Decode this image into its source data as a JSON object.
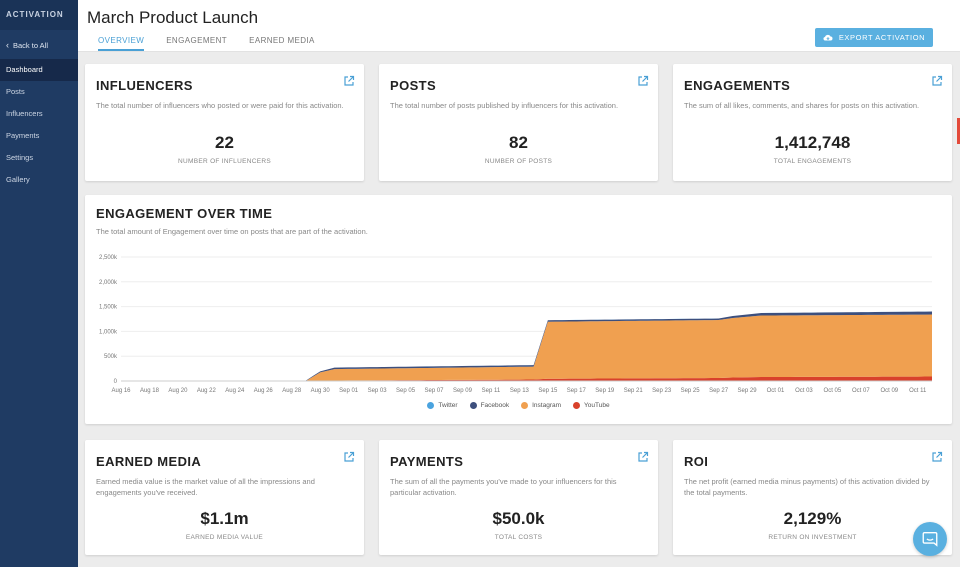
{
  "sidebar": {
    "brand": "ACTIVATION",
    "back_label": "Back to All",
    "items": [
      {
        "label": "Dashboard"
      },
      {
        "label": "Posts"
      },
      {
        "label": "Influencers"
      },
      {
        "label": "Payments"
      },
      {
        "label": "Settings"
      },
      {
        "label": "Gallery"
      }
    ]
  },
  "header": {
    "title": "March Product Launch",
    "tabs": [
      "OVERVIEW",
      "ENGAGEMENT",
      "EARNED MEDIA"
    ],
    "export_label": "EXPORT ACTIVATION"
  },
  "stats": {
    "influencers": {
      "title": "INFLUENCERS",
      "desc": "The total number of influencers who posted or were paid for this activation.",
      "value": "22",
      "sub": "NUMBER OF INFLUENCERS"
    },
    "posts": {
      "title": "POSTS",
      "desc": "The total number of posts published by influencers for this activation.",
      "value": "82",
      "sub": "NUMBER OF POSTS"
    },
    "engagements": {
      "title": "ENGAGEMENTS",
      "desc": "The sum of all likes, comments, and shares for posts on this activation.",
      "value": "1,412,748",
      "sub": "TOTAL ENGAGEMENTS"
    },
    "earned_media": {
      "title": "EARNED MEDIA",
      "desc": "Earned media value is the market value of all the impressions and engagements you've received.",
      "value": "$1.1m",
      "sub": "EARNED MEDIA VALUE"
    },
    "payments": {
      "title": "PAYMENTS",
      "desc": "The sum of all the payments you've made to your influencers for this particular activation.",
      "value": "$50.0k",
      "sub": "TOTAL COSTS"
    },
    "roi": {
      "title": "ROI",
      "desc": "The net profit (earned media minus payments) of this activation divided by the total payments.",
      "value": "2,129%",
      "sub": "RETURN ON INVESTMENT"
    }
  },
  "engagement_chart": {
    "title": "ENGAGEMENT OVER TIME",
    "desc": "The total amount of Engagement over time on posts that are part of the activation."
  },
  "colors": {
    "twitter": "#4aa3df",
    "facebook": "#3d4f7d",
    "instagram": "#f0a050",
    "youtube": "#d9412b",
    "accent": "#5ab0e0"
  },
  "chart_data": {
    "type": "area",
    "title": "ENGAGEMENT OVER TIME",
    "ylabel": "",
    "ylim": [
      0,
      2500
    ],
    "yticks": [
      0,
      500,
      1000,
      1500,
      2000,
      2500
    ],
    "ytick_labels": [
      "0",
      "500k",
      "1,000k",
      "1,500k",
      "2,000k",
      "2,500k"
    ],
    "xtick_labels": [
      "Aug 16",
      "Aug 18",
      "Aug 20",
      "Aug 22",
      "Aug 24",
      "Aug 26",
      "Aug 28",
      "Aug 30",
      "Sep 01",
      "Sep 03",
      "Sep 05",
      "Sep 07",
      "Sep 09",
      "Sep 11",
      "Sep 13",
      "Sep 15",
      "Sep 17",
      "Sep 19",
      "Sep 21",
      "Sep 23",
      "Sep 25",
      "Sep 27",
      "Sep 29",
      "Oct 01",
      "Oct 03",
      "Oct 05",
      "Oct 07",
      "Oct 09",
      "Oct 11"
    ],
    "x_start_day": 0,
    "x_end_day": 57,
    "series": [
      {
        "name": "Twitter",
        "color_key": "twitter",
        "points": [
          [
            0,
            0
          ],
          [
            13,
            0
          ],
          [
            57,
            2
          ]
        ]
      },
      {
        "name": "Facebook",
        "color_key": "facebook",
        "points": [
          [
            0,
            8
          ],
          [
            13,
            8
          ],
          [
            14,
            20
          ],
          [
            15,
            30
          ],
          [
            29,
            30
          ],
          [
            30,
            30
          ],
          [
            42,
            30
          ],
          [
            43,
            40
          ],
          [
            45,
            50
          ],
          [
            57,
            60
          ]
        ]
      },
      {
        "name": "Instagram",
        "color_key": "instagram",
        "points": [
          [
            0,
            2
          ],
          [
            13,
            2
          ],
          [
            14,
            170
          ],
          [
            15,
            230
          ],
          [
            29,
            260
          ],
          [
            30,
            1150
          ],
          [
            42,
            1170
          ],
          [
            43,
            1200
          ],
          [
            45,
            1240
          ],
          [
            57,
            1250
          ]
        ]
      },
      {
        "name": "YouTube",
        "color_key": "youtube",
        "points": [
          [
            0,
            0
          ],
          [
            13,
            0
          ],
          [
            15,
            10
          ],
          [
            29,
            30
          ],
          [
            30,
            45
          ],
          [
            42,
            60
          ],
          [
            43,
            70
          ],
          [
            45,
            80
          ],
          [
            57,
            90
          ]
        ]
      }
    ]
  }
}
